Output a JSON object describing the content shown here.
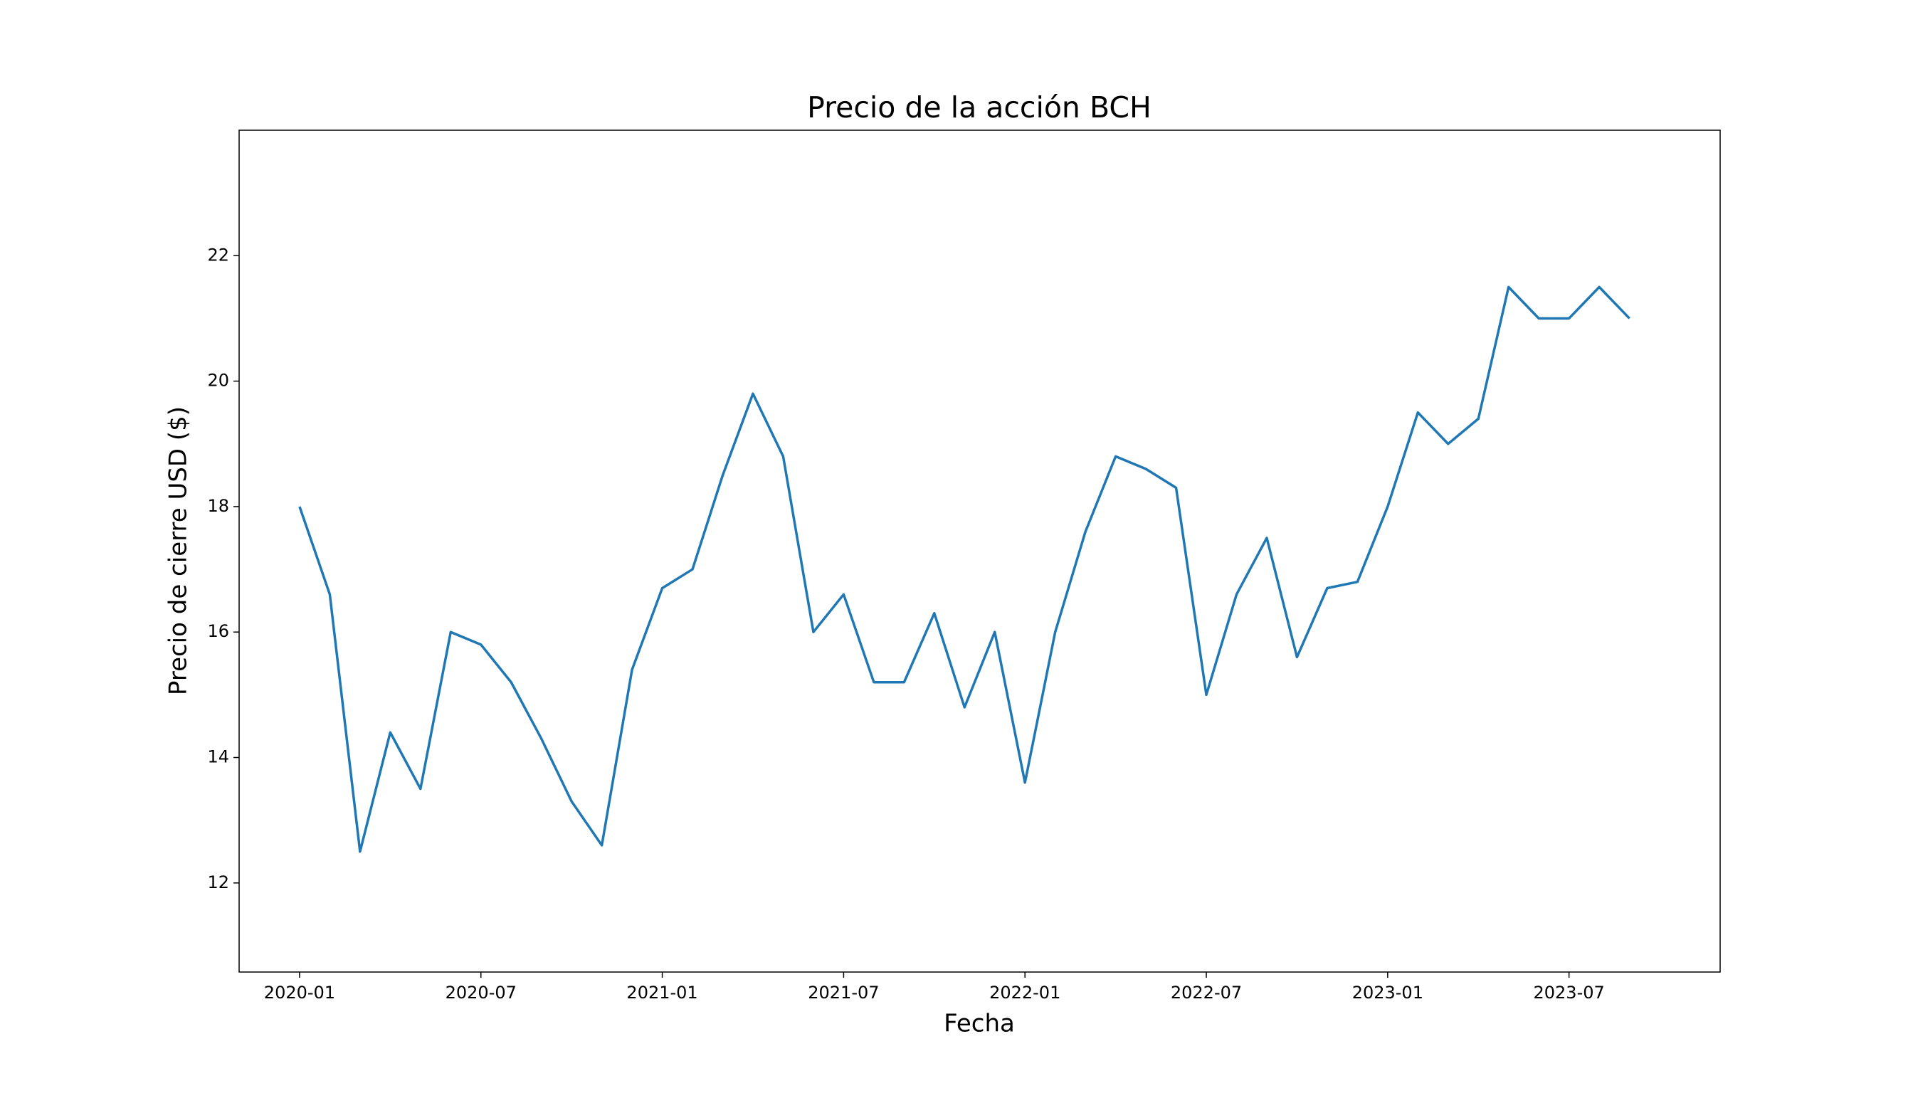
{
  "chart_data": {
    "type": "line",
    "title": "Precio de la acción BCH",
    "x_label": "Fecha",
    "y_label": "Precio de cierre USD ($)",
    "x": [
      "2020-01",
      "2020-02",
      "2020-03",
      "2020-04",
      "2020-05",
      "2020-06",
      "2020-07",
      "2020-08",
      "2020-09",
      "2020-10",
      "2020-11",
      "2020-12",
      "2021-01",
      "2021-02",
      "2021-03",
      "2021-04",
      "2021-05",
      "2021-06",
      "2021-07",
      "2021-08",
      "2021-09",
      "2021-10",
      "2021-11",
      "2021-12",
      "2022-01",
      "2022-02",
      "2022-03",
      "2022-04",
      "2022-05",
      "2022-06",
      "2022-07",
      "2022-08",
      "2022-09",
      "2022-10",
      "2022-11",
      "2022-12",
      "2023-01",
      "2023-02",
      "2023-03",
      "2023-04",
      "2023-05",
      "2023-06",
      "2023-07",
      "2023-08",
      "2023-09"
    ],
    "series": [
      {
        "name": "BCH",
        "color": "#1f77b4",
        "values": [
          18.0,
          16.6,
          12.5,
          14.4,
          13.5,
          16.0,
          15.8,
          15.2,
          14.3,
          13.3,
          12.6,
          15.4,
          16.7,
          17.0,
          18.5,
          19.8,
          18.8,
          16.0,
          16.6,
          15.2,
          15.2,
          16.3,
          14.8,
          16.0,
          13.6,
          16.0,
          17.6,
          18.8,
          18.6,
          18.3,
          15.0,
          16.6,
          17.5,
          15.6,
          16.7,
          16.8,
          18.0,
          19.5,
          19.0,
          19.4,
          21.5,
          21.0,
          21.0,
          21.5,
          21.0
        ]
      }
    ],
    "xlim": [
      "2019-11",
      "2023-12"
    ],
    "xticks": [
      "2020-01",
      "2020-07",
      "2021-01",
      "2021-07",
      "2022-01",
      "2022-07",
      "2023-01",
      "2023-07"
    ],
    "ylim": [
      10.58,
      24.0
    ],
    "yticks": [
      12,
      14,
      16,
      18,
      20,
      22
    ]
  }
}
